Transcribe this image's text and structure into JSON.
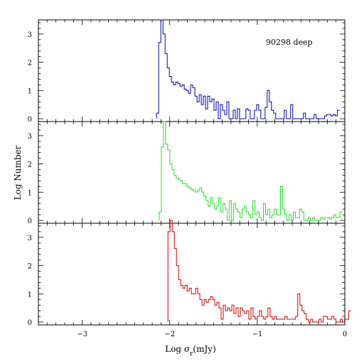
{
  "chart_data": {
    "type": "histogram",
    "xlabel": "Log σ_r(mJy)",
    "xlabel_main": "Log σ",
    "xlabel_sub": "r",
    "xlabel_unit": "(mJy)",
    "ylabel": "Log Number",
    "annotation": "90298 deep",
    "xlim": [
      -3.5,
      0
    ],
    "ylim": [
      -0.1,
      3.5
    ],
    "x_ticks": [
      -3,
      -2,
      -1,
      0
    ],
    "x_tick_labels": [
      "−3",
      "−2",
      "−1",
      "0"
    ],
    "y_ticks": [
      0,
      1,
      2,
      3
    ],
    "y_tick_labels": [
      "0",
      "1",
      "2",
      "3"
    ],
    "grid": false,
    "panels": [
      {
        "color": "#0000aa",
        "bin_width": 0.0243,
        "x_start": -2.15,
        "values": [
          0.2,
          2.7,
          3.5,
          3.0,
          2.3,
          1.8,
          1.5,
          1.3,
          1.2,
          1.3,
          1.25,
          1.15,
          1.2,
          1.05,
          1.0,
          0.9,
          1.2,
          1.1,
          0.8,
          0.6,
          0.85,
          0.5,
          0.8,
          0.35,
          0.8,
          0.6,
          0.7,
          0.3,
          0.6,
          0,
          0.5,
          0.3,
          0.15,
          0.6,
          0,
          0,
          0.3,
          0,
          0.35,
          0,
          0,
          0,
          0.35,
          0.3,
          0,
          0,
          0.3,
          0.5,
          0.3,
          0,
          0,
          0.4,
          1.0,
          0.6,
          0.3,
          0.2,
          0,
          0,
          0,
          0,
          0.3,
          0,
          0,
          0.5,
          0,
          0,
          0,
          0,
          0,
          0.2,
          0,
          0,
          0,
          0,
          0.15,
          0,
          0,
          0,
          0,
          0.1,
          0.15,
          0.15,
          0.1,
          0.15,
          0.1,
          0.3
        ]
      },
      {
        "color": "#22dd22",
        "bin_width": 0.0243,
        "x_start": -2.12,
        "values": [
          0.3,
          2.6,
          3.5,
          2.7,
          2.5,
          2.0,
          1.8,
          1.6,
          1.5,
          1.45,
          1.4,
          1.3,
          1.3,
          1.2,
          1.15,
          1.1,
          1.05,
          1.0,
          1.05,
          1.15,
          1.0,
          0.85,
          0.7,
          0.5,
          0.8,
          0.6,
          0.4,
          0.5,
          0.8,
          0.3,
          0.6,
          0.4,
          0,
          0.7,
          0,
          0.6,
          0.4,
          0.3,
          0.1,
          0.4,
          0.5,
          0.3,
          0.2,
          0.1,
          0.7,
          0.2,
          0.3,
          0.1,
          0,
          0.6,
          0.2,
          0.4,
          0.1,
          0.2,
          0.4,
          0.2,
          0.2,
          1.2,
          0.4,
          0.2,
          0,
          0.2,
          0,
          0.3,
          0.1,
          0.1,
          0.4,
          0.3,
          0,
          0,
          0.1,
          0,
          0.1,
          0,
          0,
          0,
          0.1,
          0.05,
          0.1,
          0.1,
          0.05,
          0.1,
          0.2,
          0.1,
          0.1,
          0.3
        ]
      },
      {
        "color": "#cc0000",
        "bin_width": 0.0243,
        "x_start": -2.02,
        "values": [
          3.2,
          3.6,
          3.2,
          2.6,
          2.0,
          1.5,
          1.3,
          1.2,
          1.3,
          1.1,
          1.2,
          1.0,
          1.0,
          1.2,
          1.0,
          0.8,
          0.6,
          0.8,
          0.7,
          0.8,
          0.9,
          0.8,
          0.6,
          0.7,
          0.5,
          0.1,
          0.6,
          0.4,
          0.5,
          0.4,
          0.6,
          0.3,
          0.5,
          0.2,
          0.5,
          0.4,
          0.3,
          0.4,
          0.1,
          0.5,
          0.2,
          0.1,
          0.2,
          0.4,
          0.2,
          0.1,
          0.2,
          0.5,
          0.2,
          0.1,
          0.2,
          0.1,
          0.1,
          0.1,
          0.1,
          0.2,
          0.1,
          0.1,
          0.1,
          0.1,
          0.2,
          1.0,
          0.6,
          0.4,
          0.3,
          0.1,
          0,
          0.1,
          0,
          0,
          0,
          0.1,
          0,
          0.2,
          0.2,
          0.1,
          0.1,
          0.2,
          0.1,
          0,
          0,
          0.1,
          0,
          0.1,
          0.1,
          0.4
        ]
      }
    ]
  }
}
